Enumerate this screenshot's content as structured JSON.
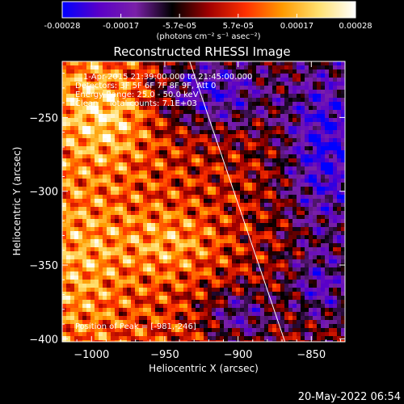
{
  "colorbar": {
    "tick_labels": [
      "-0.00028",
      "-0.00017",
      "-5.7e-05",
      "5.7e-05",
      "0.00017",
      "0.00028"
    ],
    "range": [
      -0.00028,
      0.00028
    ],
    "units_label": "(photons cm⁻² s⁻¹ asec⁻²)",
    "colormap": [
      "#0000ff",
      "#5a00c8",
      "#7a20a8",
      "#000000",
      "#a00000",
      "#ff3000",
      "#ff9a00",
      "#ffe070",
      "#ffffff"
    ]
  },
  "chart_data": {
    "type": "heatmap",
    "title": "Reconstructed RHESSI Image",
    "xlabel": "Heliocentric X (arcsec)",
    "ylabel": "Heliocentric Y (arcsec)",
    "xlim": [
      -1020,
      -827
    ],
    "ylim": [
      -402,
      -212
    ],
    "x_ticks": [
      -1000,
      -950,
      -900,
      -850
    ],
    "y_ticks": [
      -250,
      -300,
      -350,
      -400
    ],
    "annotations": [
      "1-Apr-2015 21:39:00.000 to 21:45:00.000",
      "Detectors: 3F 5F 6F 7F 8F 9F, Att 0",
      "Energy Range: 25.0 - 50.0 keV",
      "Clean    Total counts: 7.1E+03"
    ],
    "peak_label": "Position of Peak = [-981,-246]",
    "limb_line": [
      [
        -933,
        -212
      ],
      [
        -868,
        -402
      ]
    ]
  },
  "timestamp": "20-May-2022 06:54"
}
